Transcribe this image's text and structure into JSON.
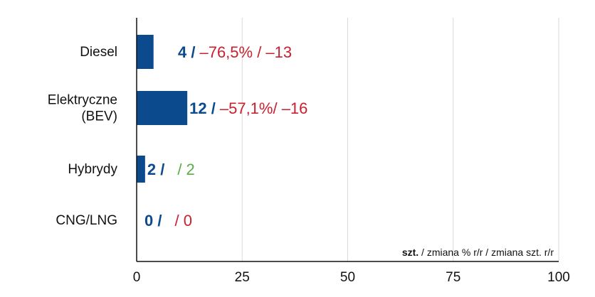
{
  "chart_data": {
    "type": "bar",
    "orientation": "horizontal",
    "categories": [
      {
        "lines": [
          "Diesel"
        ]
      },
      {
        "lines": [
          "Elektryczne",
          "(BEV)"
        ]
      },
      {
        "lines": [
          "Hybrydy"
        ]
      },
      {
        "lines": [
          "CNG/LNG"
        ]
      }
    ],
    "values": [
      4,
      12,
      2,
      0
    ],
    "value_labels": [
      "4 /",
      "12 /",
      "2 /",
      "0 /"
    ],
    "change_labels": [
      "–76,5% / –13",
      "–57,1%/ –16",
      "/ 2",
      "/ 0"
    ],
    "change_colors": [
      "#c8202f",
      "#c8202f",
      "#5aac44",
      "#c8202f"
    ],
    "xlim": [
      0,
      100
    ],
    "xticks": [
      0,
      25,
      50,
      75,
      100
    ],
    "grid": true,
    "legend": {
      "bold_part": "szt.",
      "rest": " / zmiana % r/r / zmiana szt. r/r",
      "placement": "bottom-right"
    },
    "colors": {
      "bar": "#0b4a8c",
      "value_text": "#0b4a8c",
      "grid": "#d9d9d9",
      "axis": "#111111"
    }
  }
}
